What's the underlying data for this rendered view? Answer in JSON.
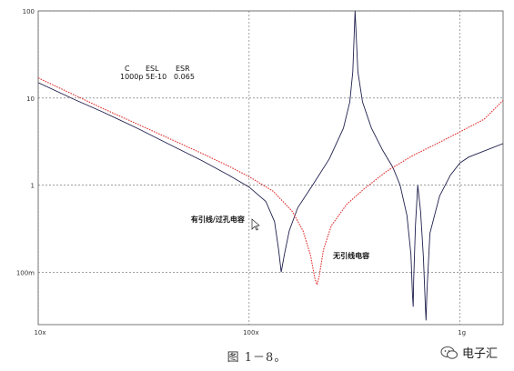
{
  "chart_data": {
    "type": "line",
    "x_scale": "log",
    "y_scale": "log",
    "xlim": [
      10000000,
      1600000000
    ],
    "ylim": [
      0.025,
      100
    ],
    "x_ticks": [
      {
        "value": 10000000,
        "label": "10x"
      },
      {
        "value": 100000000,
        "label": "100x"
      },
      {
        "value": 1000000000,
        "label": "1g"
      }
    ],
    "y_ticks": [
      {
        "value": 100,
        "label": "100"
      },
      {
        "value": 10,
        "label": "10"
      },
      {
        "value": 1,
        "label": "1"
      },
      {
        "value": 0.1,
        "label": "100m"
      }
    ],
    "grid": "dashed",
    "annotation_table": {
      "headers": [
        "C",
        "ESL",
        "ESR"
      ],
      "values": [
        "1000p",
        "5E-10",
        "0.065"
      ]
    },
    "series": [
      {
        "name": "有引线/过孔电容",
        "color": "#1f1f4d",
        "points": [
          [
            10000000,
            15
          ],
          [
            15000000,
            9.5
          ],
          [
            20000000,
            7
          ],
          [
            30000000,
            4.4
          ],
          [
            40000000,
            3.1
          ],
          [
            60000000,
            1.9
          ],
          [
            80000000,
            1.3
          ],
          [
            100000000,
            0.95
          ],
          [
            120000000,
            0.65
          ],
          [
            132000000,
            0.38
          ],
          [
            138000000,
            0.18
          ],
          [
            142000000,
            0.1
          ],
          [
            147000000,
            0.16
          ],
          [
            155000000,
            0.3
          ],
          [
            170000000,
            0.55
          ],
          [
            200000000,
            1.0
          ],
          [
            240000000,
            2.0
          ],
          [
            280000000,
            4.5
          ],
          [
            300000000,
            9
          ],
          [
            310000000,
            20
          ],
          [
            318000000,
            100
          ],
          [
            328000000,
            20
          ],
          [
            345000000,
            9
          ],
          [
            380000000,
            4.5
          ],
          [
            430000000,
            2.5
          ],
          [
            480000000,
            1.6
          ],
          [
            520000000,
            1.0
          ],
          [
            560000000,
            0.45
          ],
          [
            585000000,
            0.16
          ],
          [
            595000000,
            0.055
          ],
          [
            600000000,
            0.04
          ],
          [
            603000000,
            0.08
          ],
          [
            615000000,
            0.35
          ],
          [
            630000000,
            1.0
          ],
          [
            650000000,
            0.5
          ],
          [
            670000000,
            0.15
          ],
          [
            685000000,
            0.04
          ],
          [
            690000000,
            0.028
          ],
          [
            697000000,
            0.06
          ],
          [
            720000000,
            0.28
          ],
          [
            800000000,
            0.75
          ],
          [
            900000000,
            1.3
          ],
          [
            1000000000,
            1.8
          ],
          [
            1100000000,
            2.1
          ],
          [
            1600000000,
            3.0
          ]
        ]
      },
      {
        "name": "无引线电容",
        "color": "#e03030",
        "points": [
          [
            10000000,
            17
          ],
          [
            20000000,
            7.7
          ],
          [
            40000000,
            3.6
          ],
          [
            60000000,
            2.3
          ],
          [
            80000000,
            1.65
          ],
          [
            100000000,
            1.25
          ],
          [
            130000000,
            0.85
          ],
          [
            160000000,
            0.5
          ],
          [
            180000000,
            0.3
          ],
          [
            195000000,
            0.16
          ],
          [
            205000000,
            0.085
          ],
          [
            210000000,
            0.072
          ],
          [
            215000000,
            0.09
          ],
          [
            225000000,
            0.18
          ],
          [
            245000000,
            0.34
          ],
          [
            290000000,
            0.6
          ],
          [
            350000000,
            0.9
          ],
          [
            450000000,
            1.45
          ],
          [
            600000000,
            2.2
          ],
          [
            800000000,
            3.1
          ],
          [
            1000000000,
            4.1
          ],
          [
            1300000000,
            5.7
          ],
          [
            1600000000,
            9.4
          ]
        ]
      }
    ],
    "labels": [
      {
        "text": "有引线/过孔电容",
        "x": 53000000,
        "y": 0.38
      },
      {
        "text": "无引线电容",
        "x": 250000000,
        "y": 0.145
      }
    ]
  },
  "caption": "图 1－8",
  "caption_suffix": "。",
  "watermark": {
    "text": "电子汇",
    "icon": "wechat-bubble-icon"
  }
}
